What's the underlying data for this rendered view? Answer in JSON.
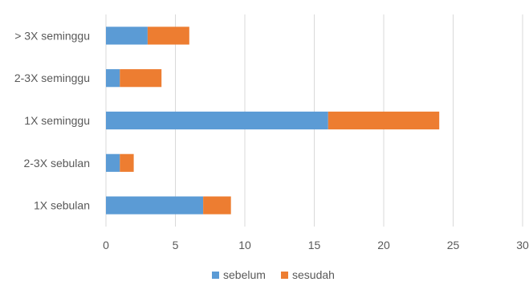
{
  "chart_data": {
    "type": "bar",
    "orientation": "horizontal",
    "stacked": true,
    "title": "",
    "xlabel": "",
    "ylabel": "",
    "categories": [
      "1X sebulan",
      "2-3X sebulan",
      "1X seminggu",
      "2-3X seminggu",
      "> 3X seminggu"
    ],
    "series": [
      {
        "name": "sebelum",
        "color": "#5b9bd5",
        "values": [
          7,
          1,
          16,
          1,
          3
        ]
      },
      {
        "name": "sesudah",
        "color": "#ed7d31",
        "values": [
          2,
          1,
          8,
          3,
          3
        ]
      }
    ],
    "xlim": [
      0,
      30
    ],
    "x_ticks": [
      0,
      5,
      10,
      15,
      20,
      25,
      30
    ],
    "grid": "vertical",
    "legend_position": "bottom",
    "gridline_color": "#d9d9d9"
  }
}
